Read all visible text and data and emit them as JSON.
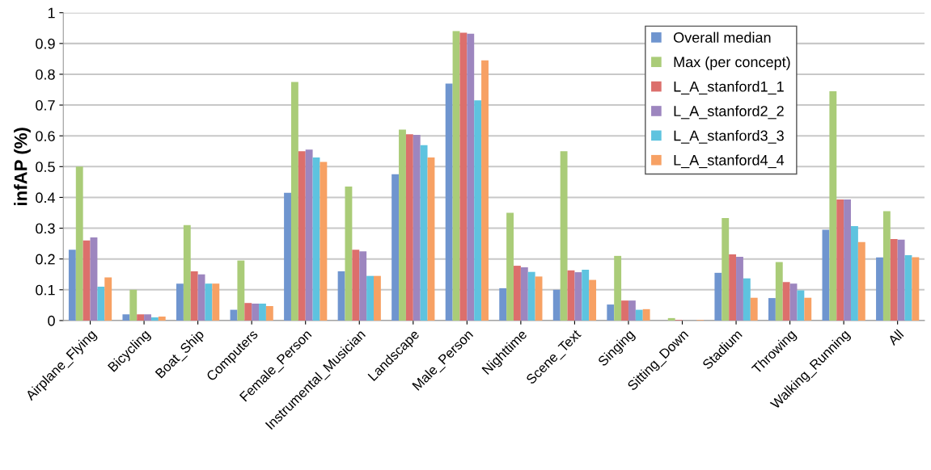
{
  "chart_data": {
    "type": "bar",
    "ylabel": "infAP (%)",
    "categories": [
      "Airplane_Flying",
      "Bicycling",
      "Boat_Ship",
      "Computers",
      "Female_Person",
      "Instrumental_Musician",
      "Landscape",
      "Male_Person",
      "Nighttime",
      "Scene_Text",
      "Singing",
      "Sitting_Down",
      "Stadium",
      "Throwing",
      "Walking_Running",
      "All"
    ],
    "series": [
      {
        "name": "Overall median",
        "color": "#6f95cf",
        "values": [
          0.23,
          0.02,
          0.12,
          0.035,
          0.415,
          0.16,
          0.475,
          0.77,
          0.105,
          0.1,
          0.052,
          null,
          0.155,
          0.073,
          0.295,
          0.205
        ]
      },
      {
        "name": "Max (per concept)",
        "color": "#aacc78",
        "values": [
          0.5,
          0.1,
          0.31,
          0.195,
          0.775,
          0.435,
          0.62,
          0.94,
          0.35,
          0.55,
          0.21,
          0.008,
          0.333,
          0.19,
          0.745,
          0.355
        ]
      },
      {
        "name": "L_A_stanford1_1",
        "color": "#dc6f6c",
        "values": [
          0.26,
          0.02,
          0.16,
          0.057,
          0.55,
          0.23,
          0.605,
          0.935,
          0.178,
          0.163,
          0.065,
          0.002,
          0.215,
          0.125,
          0.393,
          0.265
        ]
      },
      {
        "name": "L_A_stanford2_2",
        "color": "#9d86bf",
        "values": [
          0.27,
          0.02,
          0.15,
          0.055,
          0.555,
          0.225,
          0.603,
          0.932,
          0.173,
          0.157,
          0.065,
          null,
          0.207,
          0.12,
          0.393,
          0.263
        ]
      },
      {
        "name": "L_A_stanford3_3",
        "color": "#5ec3df",
        "values": [
          0.11,
          0.01,
          0.12,
          0.055,
          0.53,
          0.145,
          0.57,
          0.715,
          0.158,
          0.165,
          0.035,
          null,
          0.137,
          0.098,
          0.307,
          0.212
        ]
      },
      {
        "name": "L_A_stanford4_4",
        "color": "#f7a164",
        "values": [
          0.14,
          0.013,
          0.12,
          0.047,
          0.515,
          0.145,
          0.53,
          0.845,
          0.143,
          0.132,
          0.037,
          0.002,
          0.074,
          0.074,
          0.255,
          0.206
        ]
      }
    ],
    "ylim": [
      0,
      1
    ],
    "yticks": [
      0,
      {
        "value": 0.1,
        "label": "0.1"
      },
      0.2,
      0.3,
      0.4,
      0.5,
      0.6,
      0.7,
      0.8,
      0.9,
      1
    ],
    "grid": "y",
    "legend": "top right"
  }
}
